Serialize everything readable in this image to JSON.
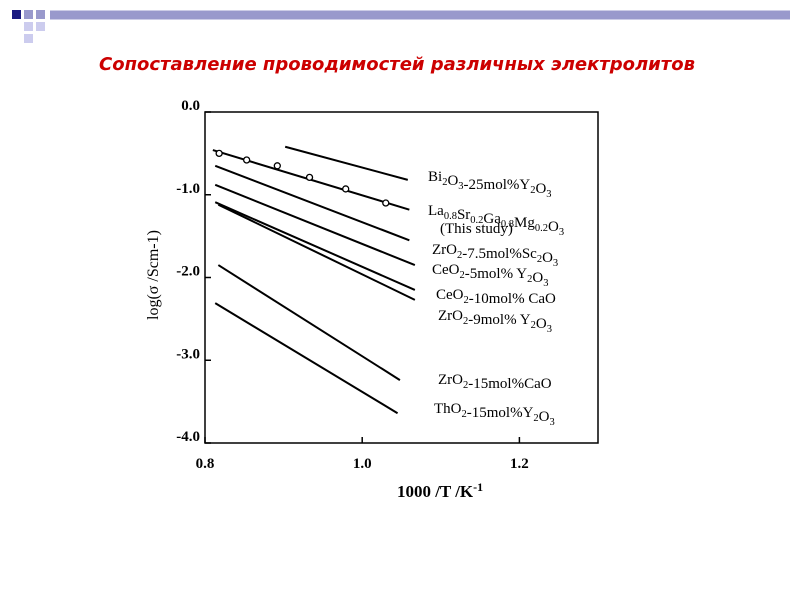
{
  "slide_title": "Сопоставление проводимостей различных электролитов",
  "chart_data": {
    "type": "line",
    "xlabel": "1000 /T /K-1",
    "ylabel": "log(σ /Scm-1)",
    "xlim": [
      0.8,
      1.3
    ],
    "ylim": [
      -4,
      0
    ],
    "xticks": [
      0.8,
      {
        "value": 1,
        "label": "1.0"
      },
      1.2
    ],
    "yticks": [
      {
        "value": 0,
        "label": "0.0"
      },
      {
        "value": -1,
        "label": "-1.0"
      },
      {
        "value": -2,
        "label": "-2.0"
      },
      {
        "value": -3,
        "label": "-3.0"
      },
      {
        "value": -4,
        "label": "-4.0"
      }
    ],
    "color": "#000000",
    "series": [
      {
        "name": "Bi2O3-25mol%Y2O3",
        "x": [
          0.902,
          1.058
        ],
        "values": [
          -0.42,
          -0.82
        ]
      },
      {
        "name": "La0.8Sr0.2Ga0.8Mg0.2O3",
        "note": "(This study)",
        "x": [
          0.81,
          1.06
        ],
        "values": [
          -0.46,
          -1.18
        ],
        "markers": {
          "x": [
            0.818,
            0.853,
            0.892,
            0.933,
            0.979,
            1.03
          ],
          "values": [
            -0.5,
            -0.58,
            -0.65,
            -0.79,
            -0.93,
            -1.1
          ]
        }
      },
      {
        "name": "ZrO2-7.5mol%Sc2O3",
        "x": [
          0.813,
          1.06
        ],
        "values": [
          -0.65,
          -1.55
        ]
      },
      {
        "name": "CeO2-5mol% Y2O3",
        "x": [
          0.813,
          1.067
        ],
        "values": [
          -0.88,
          -1.85
        ]
      },
      {
        "name": "CeO2-10mol% CaO",
        "x": [
          0.813,
          1.067
        ],
        "values": [
          -1.09,
          -2.15
        ]
      },
      {
        "name": "ZrO2-9mol% Y2O3",
        "x": [
          0.817,
          1.067
        ],
        "values": [
          -1.12,
          -2.27
        ]
      },
      {
        "name": "ZrO2-15mol%CaO",
        "x": [
          0.817,
          1.048
        ],
        "values": [
          -1.85,
          -3.24
        ]
      },
      {
        "name": "ThO2-15mol%Y2O3",
        "x": [
          0.813,
          1.045
        ],
        "values": [
          -2.31,
          -3.64
        ]
      }
    ]
  }
}
